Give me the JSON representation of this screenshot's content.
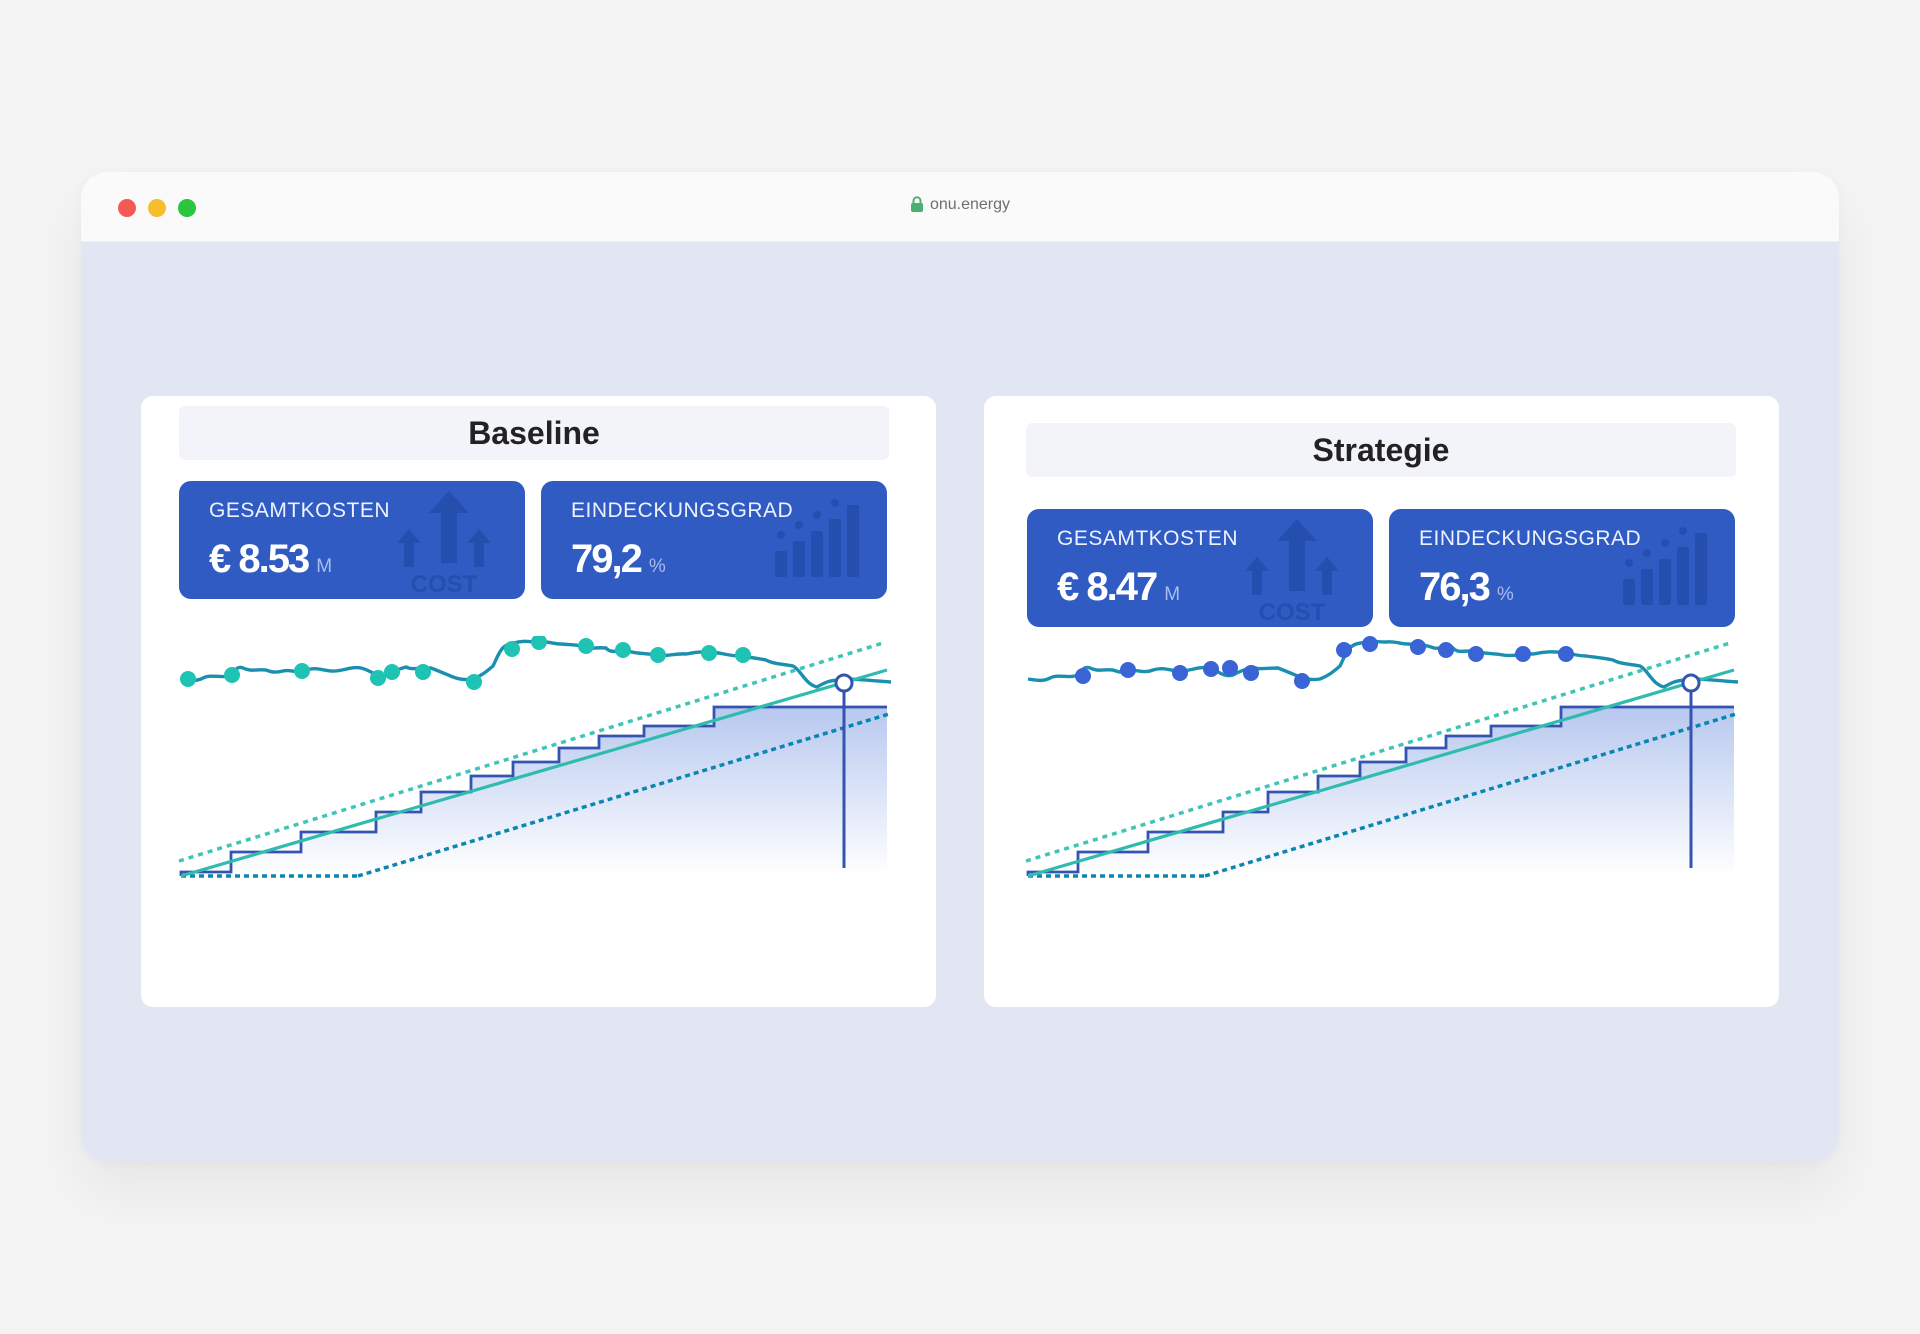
{
  "browser": {
    "url": "onu.energy",
    "icons": [
      "lock-icon"
    ]
  },
  "panels": [
    {
      "title": "Baseline",
      "kpis": [
        {
          "label": "GESAMTKOSTEN",
          "value": "€ 8.53",
          "unit": "M",
          "icon": "cost-arrows-icon"
        },
        {
          "label": "EINDECKUNGSGRAD",
          "value": "79,2",
          "unit": "%",
          "icon": "bar-growth-icon"
        }
      ],
      "marker_color": "#1ec3b4"
    },
    {
      "title": "Strategie",
      "kpis": [
        {
          "label": "GESAMTKOSTEN",
          "value": "€ 8.47",
          "unit": "M",
          "icon": "cost-arrows-icon"
        },
        {
          "label": "EINDECKUNGSGRAD",
          "value": "76,3",
          "unit": "%",
          "icon": "bar-growth-icon"
        }
      ],
      "marker_color": "#3a63d6"
    }
  ],
  "colors": {
    "accent_blue": "#2f5bc3",
    "price_line": "#1a8fb0",
    "band_upper": "#3fc4b9",
    "band_lower": "#0b86b0",
    "step_line": "#3553b0"
  }
}
